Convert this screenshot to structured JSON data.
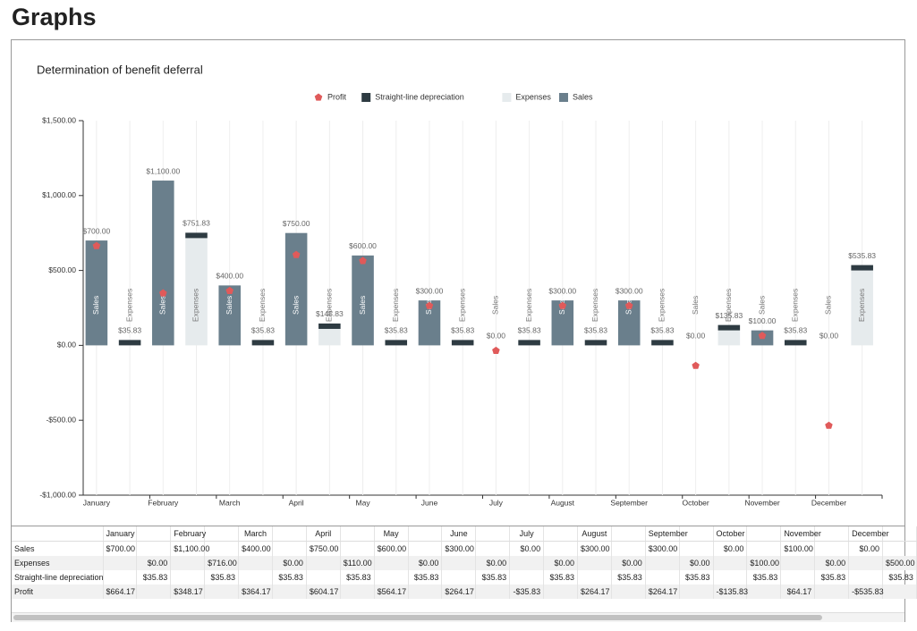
{
  "header": {
    "title": "Graphs"
  },
  "chart_data": {
    "type": "bar",
    "title": "Determination of benefit deferral",
    "categories": [
      "January",
      "February",
      "March",
      "April",
      "May",
      "June",
      "July",
      "August",
      "September",
      "October",
      "November",
      "December"
    ],
    "stacks": [
      "Sales",
      "Expenses"
    ],
    "series": [
      {
        "name": "Sales",
        "color": "#6a7f8c",
        "stack": "Sales",
        "values": [
          700,
          1100,
          400,
          750,
          600,
          300,
          0,
          300,
          300,
          0,
          100,
          0
        ],
        "value_labels": [
          "$700.00",
          "$1,100.00",
          "$400.00",
          "$750.00",
          "$600.00",
          "$300.00",
          "$0.00",
          "$300.00",
          "$300.00",
          "$0.00",
          "$100.00",
          "$0.00"
        ]
      },
      {
        "name": "Expenses",
        "color": "#e6ebed",
        "stack": "Expenses",
        "values": [
          0,
          716,
          0,
          110,
          0,
          0,
          0,
          0,
          0,
          100,
          0,
          500
        ],
        "value_labels": [
          "$0.00",
          "$716.00",
          "$0.00",
          "$110.00",
          "$0.00",
          "$0.00",
          "$0.00",
          "$0.00",
          "$0.00",
          "$100.00",
          "$0.00",
          "$500.00"
        ]
      },
      {
        "name": "Straight-line depreciation",
        "color": "#2e3b42",
        "stack": "Expenses",
        "values": [
          35.83,
          35.83,
          35.83,
          35.83,
          35.83,
          35.83,
          35.83,
          35.83,
          35.83,
          35.83,
          35.83,
          35.83
        ],
        "value_labels": [
          "$35.83",
          "$35.83",
          "$35.83",
          "$35.83",
          "$35.83",
          "$35.83",
          "$35.83",
          "$35.83",
          "$35.83",
          "$35.83",
          "$35.83",
          "$35.83"
        ]
      },
      {
        "name": "Profit",
        "color": "#e05a5a",
        "type": "scatter",
        "values": [
          664.17,
          348.17,
          364.17,
          604.17,
          564.17,
          264.17,
          -35.83,
          264.17,
          264.17,
          -135.83,
          64.17,
          -535.83
        ],
        "value_labels": [
          "$664.17",
          "$348.17",
          "$364.17",
          "$604.17",
          "$564.17",
          "$264.17",
          "-$35.83",
          "$264.17",
          "$264.17",
          "-$135.83",
          "$64.17",
          "-$535.83"
        ]
      }
    ],
    "expense_stack_labels": [
      "$35.83",
      "$751.83",
      "$35.83",
      "$145.83",
      "$35.83",
      "$35.83",
      "$35.83",
      "$35.83",
      "$35.83",
      "$135.83",
      "$35.83",
      "$535.83"
    ],
    "ylim": [
      -1000,
      1500
    ],
    "yticks": [
      {
        "value": 1500,
        "label": "$1,500.00"
      },
      {
        "value": 1000,
        "label": "$1,000.00"
      },
      {
        "value": 500,
        "label": "$500.00"
      },
      {
        "value": 0,
        "label": "$0.00"
      },
      {
        "value": -500,
        "label": "-$500.00"
      },
      {
        "value": -1000,
        "label": "-$1,000.00"
      }
    ],
    "legend": "top"
  }
}
